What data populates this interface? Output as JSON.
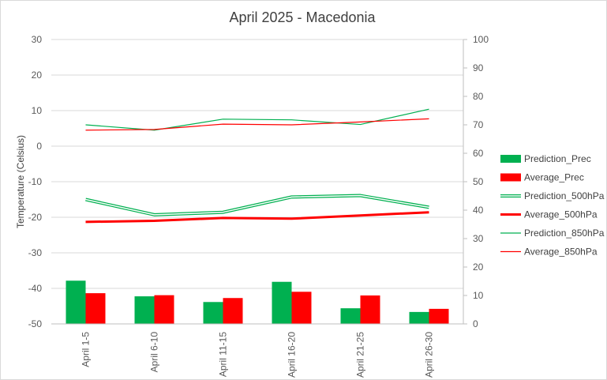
{
  "chart_data": {
    "type": "bar",
    "title": "April 2025 - Macedonia",
    "categories": [
      "April 1-5",
      "April 6-10",
      "April 11-15",
      "April 16-20",
      "April 21-25",
      "April 26-30"
    ],
    "ylabel_left": "Temperature (Celsius)",
    "ylabel_right": "",
    "ylim_left": [
      -50,
      30
    ],
    "yticks_left": [
      "30",
      "20",
      "10",
      "0",
      "-10",
      "-20",
      "-30",
      "-40",
      "-50"
    ],
    "ylim_right": [
      0,
      100
    ],
    "yticks_right": [
      "100",
      "90",
      "80",
      "70",
      "60",
      "50",
      "40",
      "30",
      "20",
      "10",
      "0"
    ],
    "grid": true,
    "legend_position": "right",
    "series": [
      {
        "name": "Prediction_Prec",
        "type": "bar",
        "axis": "right",
        "color": "#00b050",
        "values": [
          15.2,
          9.7,
          7.7,
          14.8,
          5.5,
          4.2
        ]
      },
      {
        "name": "Average_Prec",
        "type": "bar",
        "axis": "right",
        "color": "#ff0000",
        "values": [
          10.8,
          10.1,
          9.1,
          11.3,
          10.0,
          5.3
        ]
      },
      {
        "name": "Prediction_500hPa",
        "type": "line",
        "style": "double",
        "axis": "left",
        "color": "#00b050",
        "values": [
          -15.0,
          -19.3,
          -18.6,
          -14.3,
          -13.9,
          -17.2
        ]
      },
      {
        "name": "Average_500hPa",
        "type": "line",
        "style": "thick",
        "axis": "left",
        "color": "#ff0000",
        "values": [
          -21.3,
          -21.0,
          -20.2,
          -20.4,
          -19.5,
          -18.6
        ]
      },
      {
        "name": "Prediction_850hPa",
        "type": "line",
        "style": "thin",
        "axis": "left",
        "color": "#00b050",
        "values": [
          6.0,
          4.5,
          7.6,
          7.4,
          6.1,
          10.4
        ]
      },
      {
        "name": "Average_850hPa",
        "type": "line",
        "style": "thin",
        "axis": "left",
        "color": "#ff0000",
        "values": [
          4.5,
          4.7,
          6.2,
          6.0,
          6.8,
          7.7
        ]
      }
    ]
  }
}
